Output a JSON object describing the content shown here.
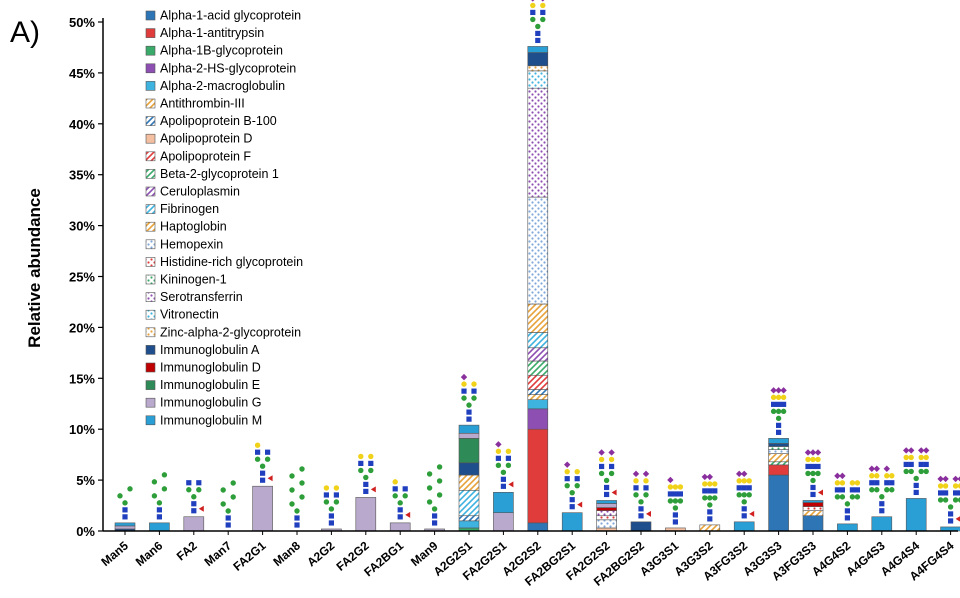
{
  "panel_label": "A)",
  "chart_data": {
    "type": "bar",
    "stacked": true,
    "ylabel": "Relative abundance",
    "xlabel": "",
    "ylim": [
      0,
      50
    ],
    "y_ticks": [
      "0%",
      "5%",
      "10%",
      "15%",
      "20%",
      "25%",
      "30%",
      "35%",
      "40%",
      "45%",
      "50%"
    ],
    "grid": false,
    "legend_position": "top-left",
    "categories": [
      "Man5",
      "Man6",
      "FA2",
      "Man7",
      "FA2G1",
      "Man8",
      "A2G2",
      "FA2G2",
      "FA2BG1",
      "Man9",
      "A2G2S1",
      "FA2G2S1",
      "A2G2S2",
      "FA2BG2S1",
      "FA2G2S2",
      "FA2BG2S2",
      "A3G3S1",
      "A3G3S2",
      "A3FG3S2",
      "A3G3S3",
      "A3FG3S3",
      "A4G4S2",
      "A4G4S3",
      "A4G4S4",
      "A4FG4S4"
    ],
    "series": [
      {
        "name": "Alpha-1-acid glycoprotein",
        "color": "#2e75b6",
        "pattern": "solid",
        "values": [
          0,
          0,
          0,
          0,
          0,
          0,
          0,
          0,
          0,
          0,
          0,
          0,
          0.8,
          0,
          0,
          0,
          0,
          0,
          0,
          5.5,
          1.5,
          0,
          0,
          0,
          0
        ]
      },
      {
        "name": "Alpha-1-antitrypsin",
        "color": "#e03c3c",
        "pattern": "solid",
        "values": [
          0,
          0,
          0,
          0,
          0,
          0,
          0,
          0,
          0,
          0,
          0,
          0,
          9.2,
          0,
          0,
          0,
          0,
          0,
          0,
          1.0,
          0,
          0,
          0,
          0,
          0
        ]
      },
      {
        "name": "Alpha-1B-glycoprotein",
        "color": "#3aaa6a",
        "pattern": "solid",
        "values": [
          0,
          0,
          0,
          0,
          0,
          0,
          0,
          0,
          0,
          0,
          0.3,
          0,
          0,
          0,
          0,
          0,
          0,
          0,
          0,
          0,
          0,
          0,
          0,
          0,
          0
        ]
      },
      {
        "name": "Alpha-2-HS-glycoprotein",
        "color": "#8e4fb3",
        "pattern": "solid",
        "values": [
          0,
          0,
          0,
          0,
          0,
          0,
          0,
          0,
          0,
          0,
          0,
          0,
          2.0,
          0,
          0,
          0,
          0,
          0,
          0,
          0,
          0,
          0,
          0,
          0,
          0
        ]
      },
      {
        "name": "Alpha-2-macroglobulin",
        "color": "#3fb3e0",
        "pattern": "solid",
        "values": [
          0,
          0,
          0,
          0,
          0,
          0,
          0,
          0,
          0,
          0,
          0.7,
          0,
          0.9,
          0,
          0,
          0,
          0,
          0,
          0,
          0,
          0,
          0,
          0,
          0,
          0
        ]
      },
      {
        "name": "Antithrombin-III",
        "color": "#e8a23a",
        "pattern": "hatch",
        "values": [
          0,
          0,
          0,
          0,
          0,
          0,
          0,
          0,
          0,
          0,
          0,
          0,
          0.5,
          0,
          0,
          0,
          0,
          0.6,
          0,
          0,
          0,
          0,
          0,
          0,
          0
        ]
      },
      {
        "name": "Apolipoprotein B-100",
        "color": "#2e75b6",
        "pattern": "hatch",
        "values": [
          0,
          0,
          0,
          0,
          0,
          0,
          0,
          0,
          0,
          0,
          0.5,
          0,
          0.5,
          0,
          0,
          0,
          0,
          0,
          0,
          0,
          0,
          0,
          0,
          0,
          0
        ]
      },
      {
        "name": "Apolipoprotein D",
        "color": "#f4bfa0",
        "pattern": "solid",
        "values": [
          0,
          0,
          0,
          0,
          0,
          0,
          0,
          0,
          0,
          0,
          0,
          0,
          0,
          0,
          0.3,
          0,
          0.3,
          0,
          0,
          0,
          0,
          0,
          0,
          0,
          0
        ]
      },
      {
        "name": "Apolipoprotein F",
        "color": "#e03c3c",
        "pattern": "hatch",
        "values": [
          0,
          0,
          0,
          0,
          0,
          0,
          0,
          0,
          0,
          0,
          0,
          0,
          1.4,
          0,
          0,
          0,
          0,
          0,
          0,
          0,
          0,
          0,
          0,
          0,
          0
        ]
      },
      {
        "name": "Beta-2-glycoprotein 1",
        "color": "#3aaa6a",
        "pattern": "hatch",
        "values": [
          0,
          0,
          0,
          0,
          0,
          0,
          0,
          0,
          0,
          0,
          0,
          0,
          1.4,
          0,
          0,
          0,
          0,
          0,
          0,
          0.3,
          0,
          0,
          0,
          0,
          0
        ]
      },
      {
        "name": "Ceruloplasmin",
        "color": "#8e4fb3",
        "pattern": "hatch",
        "values": [
          0,
          0,
          0,
          0,
          0,
          0,
          0,
          0,
          0,
          0,
          0,
          0,
          1.3,
          0,
          0,
          0,
          0,
          0,
          0,
          0,
          0,
          0,
          0,
          0,
          0
        ]
      },
      {
        "name": "Fibrinogen",
        "color": "#3fb3e0",
        "pattern": "hatch",
        "values": [
          0,
          0,
          0,
          0,
          0,
          0,
          0,
          0,
          0,
          0,
          2.5,
          0,
          1.5,
          0,
          0,
          0,
          0,
          0,
          0,
          0,
          0,
          0,
          0,
          0,
          0
        ]
      },
      {
        "name": "Haptoglobin",
        "color": "#e8a23a",
        "pattern": "hatch",
        "values": [
          0,
          0,
          0,
          0,
          0,
          0,
          0,
          0,
          0,
          0,
          1.5,
          0,
          2.8,
          0,
          0,
          0,
          0,
          0,
          0,
          0.8,
          0.5,
          0,
          0,
          0,
          0
        ]
      },
      {
        "name": "Hemopexin",
        "color": "#7fa7d8",
        "pattern": "dots",
        "values": [
          0,
          0,
          0,
          0,
          0,
          0,
          0,
          0,
          0,
          0,
          0,
          0,
          10.5,
          0,
          0.8,
          0,
          0,
          0,
          0,
          0.4,
          0,
          0,
          0,
          0,
          0
        ]
      },
      {
        "name": "Histidine-rich glycoprotein",
        "color": "#e03c3c",
        "pattern": "dots",
        "values": [
          0,
          0,
          0,
          0,
          0,
          0,
          0,
          0,
          0,
          0,
          0,
          0,
          0,
          0,
          0.4,
          0,
          0,
          0,
          0,
          0,
          0.4,
          0,
          0,
          0,
          0
        ]
      },
      {
        "name": "Kininogen-1",
        "color": "#3aaa6a",
        "pattern": "dots",
        "values": [
          0,
          0,
          0,
          0,
          0,
          0,
          0,
          0,
          0,
          0,
          0,
          0,
          0,
          0,
          0,
          0,
          0,
          0,
          0,
          0.3,
          0,
          0,
          0,
          0,
          0
        ]
      },
      {
        "name": "Serotransferrin",
        "color": "#8e4fb3",
        "pattern": "dots",
        "values": [
          0,
          0,
          0,
          0,
          0,
          0,
          0,
          0,
          0,
          0,
          0,
          0,
          10.7,
          0,
          0.5,
          0,
          0,
          0,
          0,
          0,
          0,
          0,
          0,
          0,
          0
        ]
      },
      {
        "name": "Vitronectin",
        "color": "#3fb3e0",
        "pattern": "dots",
        "values": [
          0,
          0,
          0,
          0,
          0,
          0,
          0,
          0,
          0,
          0,
          0,
          0,
          1.7,
          0,
          0,
          0,
          0,
          0,
          0,
          0,
          0,
          0,
          0,
          0,
          0
        ]
      },
      {
        "name": "Zinc-alpha-2-glycoprotein",
        "color": "#e8a23a",
        "pattern": "dots",
        "values": [
          0,
          0,
          0,
          0,
          0,
          0,
          0,
          0,
          0,
          0,
          0,
          0,
          0.5,
          0,
          0,
          0,
          0,
          0,
          0,
          0,
          0,
          0,
          0,
          0,
          0
        ]
      },
      {
        "name": "Immunoglobulin A",
        "color": "#1f4e8c",
        "pattern": "solid",
        "values": [
          0.2,
          0,
          0,
          0,
          0,
          0,
          0,
          0,
          0,
          0,
          1.2,
          0,
          1.3,
          0,
          0,
          0.9,
          0,
          0,
          0,
          0.3,
          0,
          0,
          0,
          0,
          0
        ]
      },
      {
        "name": "Immunoglobulin D",
        "color": "#c00000",
        "pattern": "solid",
        "values": [
          0,
          0,
          0,
          0,
          0,
          0,
          0,
          0,
          0,
          0,
          0,
          0,
          0,
          0,
          0.3,
          0,
          0,
          0,
          0,
          0,
          0.4,
          0,
          0,
          0,
          0
        ]
      },
      {
        "name": "Immunoglobulin E",
        "color": "#2e8b57",
        "pattern": "solid",
        "values": [
          0,
          0,
          0,
          0,
          0,
          0,
          0,
          0,
          0,
          0,
          2.4,
          0,
          0,
          0,
          0,
          0,
          0,
          0,
          0,
          0,
          0,
          0,
          0,
          0,
          0
        ]
      },
      {
        "name": "Immunoglobulin G",
        "color": "#b9a9cc",
        "pattern": "solid",
        "values": [
          0.3,
          0,
          1.4,
          0,
          4.4,
          0,
          0.2,
          3.3,
          0.8,
          0.2,
          0.5,
          1.8,
          0,
          0,
          0.4,
          0,
          0,
          0,
          0,
          0,
          0,
          0,
          0,
          0,
          0
        ]
      },
      {
        "name": "Immunoglobulin M",
        "color": "#2a9fd6",
        "pattern": "solid",
        "values": [
          0.3,
          0.8,
          0,
          0,
          0,
          0,
          0,
          0,
          0,
          0,
          0.8,
          2.0,
          0.6,
          1.8,
          0.3,
          0,
          0,
          0,
          0.9,
          0.5,
          0.2,
          0.7,
          1.4,
          3.2,
          0.4
        ]
      }
    ]
  }
}
